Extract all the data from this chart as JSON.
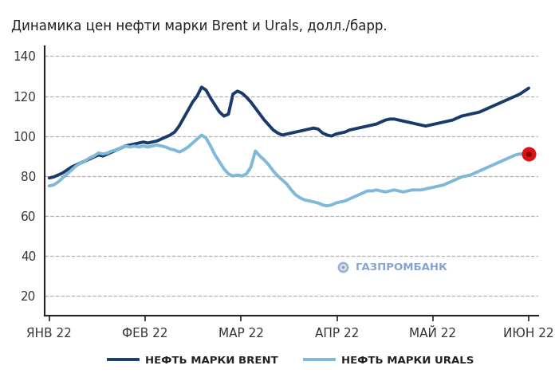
{
  "title": "Динамика цен нефти марки Brent и Urals, долл./барр.",
  "background_color": "#ffffff",
  "grid_color": "#aaaaaa",
  "ylim": [
    10,
    145
  ],
  "yticks": [
    20,
    40,
    60,
    80,
    100,
    120,
    140
  ],
  "brent_color": "#1a3a6b",
  "urals_color": "#7fb8d8",
  "dot_color": "#dd1111",
  "dot_inner_color": "#8b0000",
  "legend_brent": "НЕФТЬ МАРКИ BRENT",
  "legend_urals": "НЕФТЬ МАРКИ URALS",
  "watermark": "ГАЗПРОМБАНК",
  "brent_data": [
    79.0,
    79.5,
    80.5,
    81.5,
    83.0,
    84.5,
    85.5,
    86.5,
    87.5,
    88.5,
    89.5,
    90.5,
    90.0,
    91.0,
    92.0,
    93.0,
    94.0,
    95.0,
    95.5,
    96.0,
    96.5,
    97.0,
    96.5,
    97.0,
    97.5,
    98.5,
    99.5,
    100.5,
    102.0,
    105.0,
    109.0,
    113.0,
    117.0,
    120.0,
    124.5,
    123.0,
    119.0,
    115.5,
    112.0,
    110.0,
    111.0,
    121.0,
    122.5,
    121.5,
    119.5,
    117.0,
    114.0,
    111.0,
    108.0,
    105.5,
    103.0,
    101.5,
    100.5,
    101.0,
    101.5,
    102.0,
    102.5,
    103.0,
    103.5,
    104.0,
    103.5,
    101.5,
    100.5,
    100.0,
    101.0,
    101.5,
    102.0,
    103.0,
    103.5,
    104.0,
    104.5,
    105.0,
    105.5,
    106.0,
    107.0,
    108.0,
    108.5,
    108.5,
    108.0,
    107.5,
    107.0,
    106.5,
    106.0,
    105.5,
    105.0,
    105.5,
    106.0,
    106.5,
    107.0,
    107.5,
    108.0,
    109.0,
    110.0,
    110.5,
    111.0,
    111.5,
    112.0,
    113.0,
    114.0,
    115.0,
    116.0,
    117.0,
    118.0,
    119.0,
    120.0,
    121.0,
    122.5,
    124.0
  ],
  "urals_data": [
    75.0,
    75.5,
    77.0,
    79.0,
    81.0,
    83.0,
    85.0,
    86.5,
    87.5,
    89.0,
    90.0,
    91.5,
    91.0,
    91.5,
    92.5,
    93.0,
    94.0,
    95.0,
    94.5,
    95.0,
    94.5,
    95.0,
    94.5,
    95.0,
    95.5,
    95.0,
    94.5,
    93.5,
    93.0,
    92.0,
    93.0,
    94.5,
    96.5,
    98.5,
    100.5,
    99.0,
    95.0,
    90.5,
    87.0,
    83.5,
    81.0,
    80.0,
    80.5,
    80.0,
    81.0,
    84.5,
    92.5,
    90.0,
    88.0,
    85.5,
    82.5,
    80.0,
    78.0,
    76.0,
    73.0,
    70.5,
    69.0,
    68.0,
    67.5,
    67.0,
    66.5,
    65.5,
    65.0,
    65.5,
    66.5,
    67.0,
    67.5,
    68.5,
    69.5,
    70.5,
    71.5,
    72.5,
    72.5,
    73.0,
    72.5,
    72.0,
    72.5,
    73.0,
    72.5,
    72.0,
    72.5,
    73.0,
    73.0,
    73.0,
    73.5,
    74.0,
    74.5,
    75.0,
    75.5,
    76.5,
    77.5,
    78.5,
    79.5,
    80.0,
    80.5,
    81.5,
    82.5,
    83.5,
    84.5,
    85.5,
    86.5,
    87.5,
    88.5,
    89.5,
    90.5,
    91.0,
    91.0,
    91.0
  ],
  "x_tick_labels": [
    "ЯНВ 22",
    "ФЕВ 22",
    "МАР 22",
    "АПР 22",
    "МАЙ 22",
    "ИЮН 22"
  ],
  "x_tick_positions_frac": [
    0.0,
    0.2,
    0.4,
    0.6,
    0.8,
    1.0
  ]
}
